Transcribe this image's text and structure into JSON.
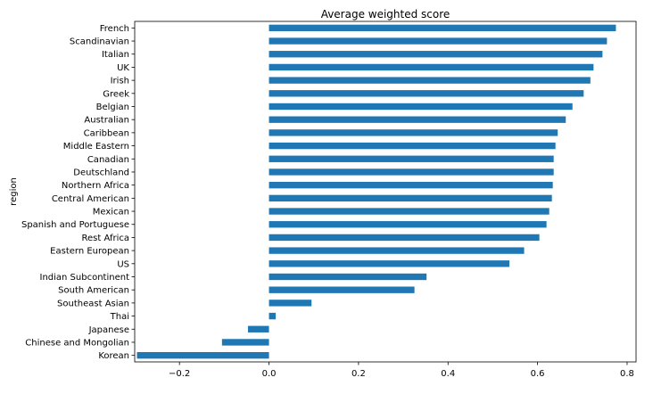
{
  "chart_data": {
    "type": "bar",
    "orientation": "horizontal",
    "title": "Average weighted score",
    "xlabel": "",
    "ylabel": "region",
    "xlim": [
      -0.3,
      0.82
    ],
    "xticks": [
      -0.2,
      0.0,
      0.2,
      0.4,
      0.6,
      0.8
    ],
    "xtick_labels": [
      "−0.2",
      "0.0",
      "0.2",
      "0.4",
      "0.6",
      "0.8"
    ],
    "grid": false,
    "bar_color": "#1f77b4",
    "categories": [
      "French",
      "Scandinavian",
      "Italian",
      "UK",
      "Irish",
      "Greek",
      "Belgian",
      "Australian",
      "Caribbean",
      "Middle Eastern",
      "Canadian",
      "Deutschland",
      "Northern Africa",
      "Central American",
      "Mexican",
      "Spanish and Portuguese",
      "Rest Africa",
      "Eastern European",
      "US",
      "Indian Subcontinent",
      "South American",
      "Southeast Asian",
      "Thai",
      "Japanese",
      "Chinese and Mongolian",
      "Korean"
    ],
    "values": [
      0.775,
      0.755,
      0.745,
      0.725,
      0.718,
      0.703,
      0.678,
      0.663,
      0.645,
      0.64,
      0.636,
      0.636,
      0.634,
      0.632,
      0.626,
      0.62,
      0.604,
      0.57,
      0.537,
      0.352,
      0.325,
      0.095,
      0.015,
      -0.047,
      -0.105,
      -0.295
    ]
  }
}
